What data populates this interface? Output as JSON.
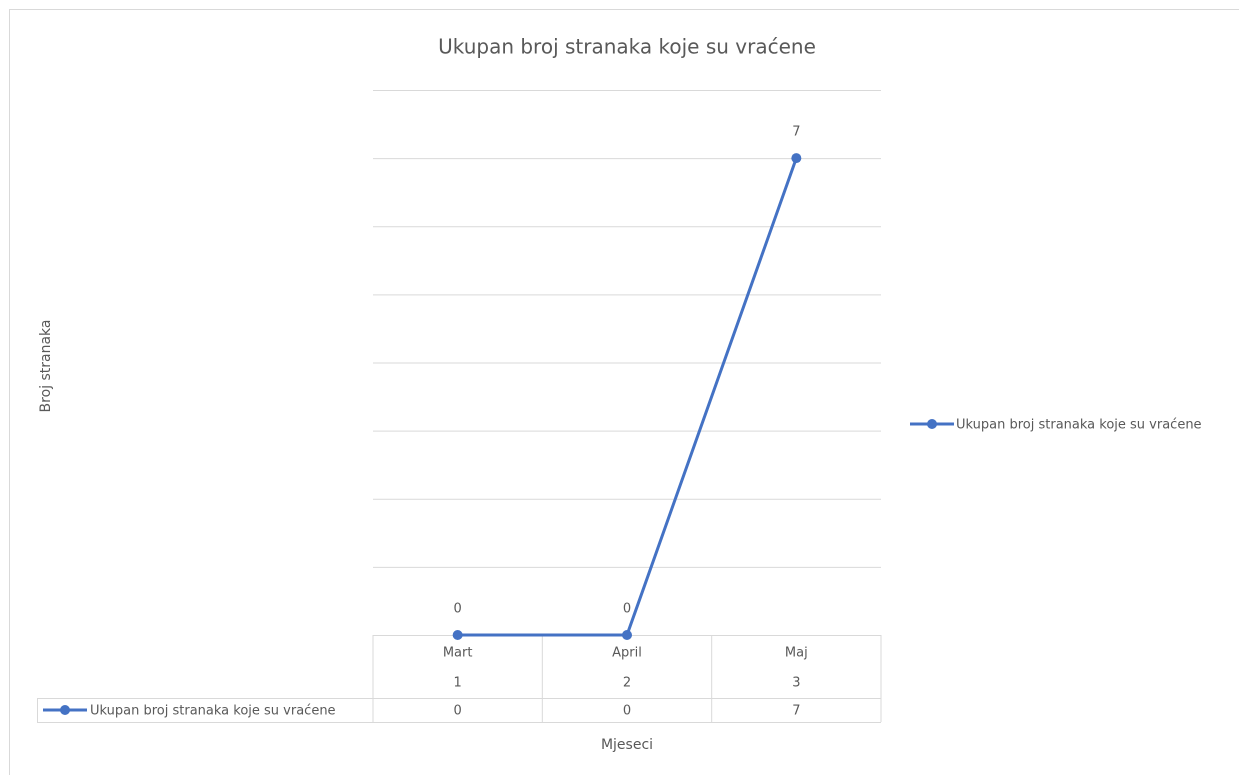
{
  "chart_data": {
    "type": "line",
    "title": "Ukupan broj stranaka koje su vraćene",
    "y_label": "Broj stranaka",
    "x_label": "Mjeseci",
    "categories": [
      "Mart",
      "April",
      "Maj"
    ],
    "category_numbers": [
      1,
      2,
      3
    ],
    "series": [
      {
        "name": "Ukupan broj stranaka koje su vraćene",
        "color": "#4472c4",
        "values": [
          0,
          0,
          7
        ]
      }
    ],
    "ylim": [
      0,
      8
    ],
    "yticks": [
      0,
      1,
      2,
      3,
      4,
      5,
      6,
      7,
      8
    ],
    "grid": true,
    "legend": "right",
    "data_labels": true,
    "data_table": true
  }
}
